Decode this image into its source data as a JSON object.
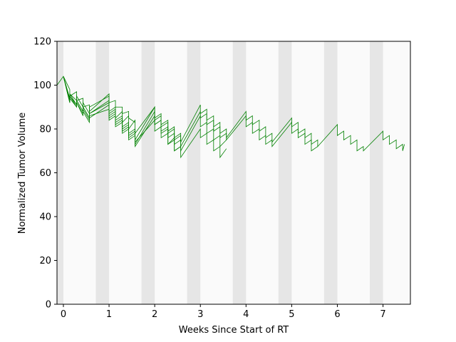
{
  "chart_data": {
    "type": "line",
    "title": "",
    "xlabel": "Weeks Since Start of RT",
    "ylabel": "Normalized Tumor Volume",
    "xlim": [
      -0.14,
      7.6
    ],
    "ylim": [
      0,
      120
    ],
    "xticks": [
      0,
      1,
      2,
      3,
      4,
      5,
      6,
      7
    ],
    "yticks": [
      0,
      20,
      40,
      60,
      80,
      100,
      120
    ],
    "grid": false,
    "legend": "none",
    "colors": {
      "series": "#008000",
      "weekend_band": "#e6e6e6",
      "plot_background": "#fafafa",
      "axes": "#000000"
    },
    "weekend_bands": [
      [
        -0.14,
        0
      ],
      [
        0.71,
        1.0
      ],
      [
        1.71,
        2.0
      ],
      [
        2.71,
        3.0
      ],
      [
        3.71,
        4.0
      ],
      [
        4.71,
        5.0
      ],
      [
        5.71,
        6.0
      ],
      [
        6.71,
        7.0
      ]
    ],
    "series": [
      {
        "x": [
          -0.14,
          0.0,
          0.0,
          0.14,
          0.14,
          0.29,
          0.29,
          0.43,
          0.43,
          0.57,
          0.57,
          1.0,
          1.0,
          1.14,
          1.14,
          1.29,
          1.29,
          1.43,
          1.43,
          1.57
        ],
        "y": [
          100,
          104,
          104,
          98,
          95,
          97,
          93,
          94,
          90,
          91,
          88,
          96,
          92,
          93,
          90,
          90,
          87,
          88,
          85,
          83
        ]
      },
      {
        "x": [
          0.0,
          0.14,
          0.14,
          0.29,
          0.29,
          0.43,
          0.43,
          0.57,
          0.57,
          1.0,
          1.0,
          1.14,
          1.14,
          1.29,
          1.29,
          1.43,
          1.43,
          1.57,
          1.57,
          2.0,
          2.0,
          2.14,
          2.14,
          2.29,
          2.29,
          2.43,
          2.43,
          2.57
        ],
        "y": [
          104,
          92,
          96,
          93,
          95,
          90,
          92,
          87,
          90,
          95,
          88,
          90,
          85,
          88,
          83,
          86,
          80,
          84,
          78,
          90,
          82,
          84,
          78,
          80,
          73,
          76,
          70,
          72
        ]
      },
      {
        "x": [
          0.0,
          0.14,
          0.14,
          0.29,
          0.29,
          0.43,
          0.43,
          0.57,
          0.57,
          1.0,
          1.0,
          1.14,
          1.14,
          1.29,
          1.29,
          1.43,
          1.43,
          1.57,
          1.57,
          2.0,
          2.0,
          2.14,
          2.14,
          2.29,
          2.29,
          2.43,
          2.43,
          2.57,
          2.57,
          3.0,
          3.0,
          3.14,
          3.14,
          3.29,
          3.29,
          3.43,
          3.43,
          3.57
        ],
        "y": [
          104,
          93,
          95,
          91,
          93,
          88,
          90,
          85,
          87,
          92,
          86,
          88,
          83,
          85,
          80,
          82,
          77,
          79,
          74,
          84,
          79,
          81,
          76,
          78,
          73,
          75,
          70,
          72,
          67,
          80,
          76,
          78,
          73,
          75,
          70,
          72,
          67,
          71
        ]
      },
      {
        "x": [
          0.0,
          0.14,
          0.14,
          0.29,
          0.29,
          0.43,
          0.43,
          0.57,
          0.57,
          1.0,
          1.0,
          1.14,
          1.14,
          1.29,
          1.29,
          1.43,
          1.43,
          1.57,
          1.57,
          2.0,
          2.0,
          2.14,
          2.14,
          2.29,
          2.29,
          2.43,
          2.43,
          2.57,
          2.57,
          3.0,
          3.0,
          3.14,
          3.14,
          3.29,
          3.29,
          3.43,
          3.43,
          3.57
        ],
        "y": [
          104,
          92,
          94,
          90,
          92,
          87,
          89,
          84,
          86,
          89,
          84,
          86,
          81,
          83,
          78,
          80,
          75,
          77,
          72,
          86,
          82,
          84,
          79,
          81,
          76,
          78,
          73,
          75,
          70,
          86,
          81,
          83,
          78,
          80,
          75,
          77,
          72,
          75
        ]
      },
      {
        "x": [
          0.0,
          0.14,
          0.14,
          0.29,
          0.29,
          0.43,
          0.43,
          0.57,
          0.57,
          1.0,
          1.0,
          1.14,
          1.14,
          1.29,
          1.29,
          1.43,
          1.43,
          1.57,
          1.57,
          2.0,
          2.0,
          2.14,
          2.14,
          2.29,
          2.29,
          2.43,
          2.43,
          2.57,
          2.57,
          3.0,
          3.0,
          3.14,
          3.14,
          3.29,
          3.29,
          3.43,
          3.43,
          3.57,
          3.57,
          4.0,
          4.0,
          4.14,
          4.14,
          4.29,
          4.29,
          4.43,
          4.43,
          4.57,
          4.57,
          5.0,
          5.0,
          5.14,
          5.14,
          5.29,
          5.29,
          5.43,
          5.43,
          5.57
        ],
        "y": [
          104,
          93,
          95,
          90,
          92,
          86,
          88,
          83,
          85,
          91,
          85,
          87,
          82,
          84,
          79,
          81,
          76,
          78,
          73,
          88,
          84,
          86,
          81,
          83,
          78,
          80,
          75,
          77,
          72,
          88,
          85,
          87,
          82,
          84,
          79,
          81,
          76,
          78,
          75,
          86,
          81,
          83,
          78,
          80,
          75,
          77,
          73,
          75,
          72,
          83,
          78,
          80,
          76,
          78,
          73,
          75,
          70,
          72
        ]
      },
      {
        "x": [
          0.0,
          0.14,
          0.14,
          0.29,
          0.29,
          0.43,
          0.43,
          0.57,
          0.57,
          1.0,
          1.0,
          1.14,
          1.14,
          1.29,
          1.29,
          1.43,
          1.43,
          1.57,
          1.57,
          2.0,
          2.0,
          2.14,
          2.14,
          2.29,
          2.29,
          2.43,
          2.43,
          2.57,
          2.57,
          3.0,
          3.0,
          3.14,
          3.14,
          3.29,
          3.29,
          3.43,
          3.43,
          3.57,
          3.57,
          4.0,
          4.0,
          4.14,
          4.14,
          4.29,
          4.29,
          4.43,
          4.43,
          4.57,
          4.57,
          5.0,
          5.0,
          5.14,
          5.14,
          5.29,
          5.29,
          5.43,
          5.43,
          5.57,
          5.57,
          6.0,
          6.0,
          6.14,
          6.14,
          6.29,
          6.29,
          6.43,
          6.43,
          6.57,
          6.57,
          7.0,
          7.0,
          7.14,
          7.14,
          7.29,
          7.29,
          7.43,
          7.43,
          7.47
        ],
        "y": [
          104,
          94,
          96,
          91,
          93,
          88,
          90,
          85,
          87,
          93,
          87,
          89,
          84,
          86,
          81,
          83,
          78,
          80,
          75,
          90,
          85,
          87,
          82,
          84,
          79,
          81,
          76,
          78,
          74,
          91,
          87,
          89,
          84,
          86,
          81,
          83,
          78,
          80,
          76,
          88,
          84,
          86,
          82,
          84,
          79,
          81,
          76,
          78,
          74,
          85,
          81,
          83,
          78,
          80,
          76,
          78,
          73,
          75,
          72,
          82,
          77,
          79,
          75,
          77,
          73,
          75,
          70,
          72,
          70,
          79,
          75,
          77,
          73,
          75,
          71,
          73,
          70,
          73
        ]
      }
    ]
  }
}
